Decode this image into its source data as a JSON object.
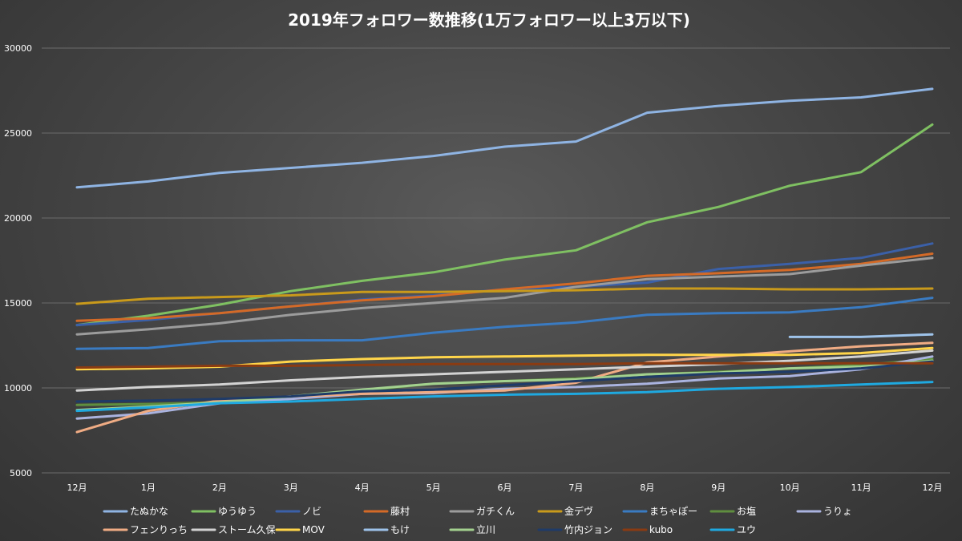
{
  "chart_data": {
    "type": "line",
    "title": "2019年フォロワー数推移(1万フォロワー以上3万以下)",
    "xlabel": "",
    "ylabel": "",
    "categories": [
      "12月",
      "1月",
      "2月",
      "3月",
      "4月",
      "5月",
      "6月",
      "7月",
      "8月",
      "9月",
      "10月",
      "11月",
      "12月"
    ],
    "ylim": [
      5000,
      30000
    ],
    "yticks": [
      5000,
      10000,
      15000,
      20000,
      25000,
      30000
    ],
    "grid": true,
    "legend_position": "bottom",
    "background": "#474747",
    "series": [
      {
        "name": "たぬかな",
        "color": "#8fb4e3",
        "values": [
          21800,
          22150,
          22650,
          22950,
          23250,
          23650,
          24200,
          24500,
          26200,
          26600,
          26900,
          27100,
          27600
        ]
      },
      {
        "name": "ゆうゆう",
        "color": "#7fc062",
        "values": [
          13700,
          14250,
          14900,
          15700,
          16300,
          16800,
          17550,
          18100,
          19750,
          20650,
          21900,
          22700,
          25500
        ]
      },
      {
        "name": "ノビ",
        "color": "#3b60a8",
        "values": [
          13700,
          14000,
          14400,
          14800,
          15200,
          15450,
          15800,
          15950,
          16200,
          17000,
          17300,
          17650,
          18500
        ]
      },
      {
        "name": "藤村",
        "color": "#d46a27",
        "values": [
          13950,
          14100,
          14400,
          14800,
          15150,
          15400,
          15800,
          16150,
          16600,
          16750,
          16950,
          17300,
          17900
        ]
      },
      {
        "name": "ガチくん",
        "color": "#9c9c9c",
        "values": [
          13150,
          13450,
          13800,
          14300,
          14700,
          15000,
          15300,
          15950,
          16400,
          16550,
          16700,
          17200,
          17650
        ]
      },
      {
        "name": "金デヴ",
        "color": "#c99a1b",
        "values": [
          14950,
          15250,
          15350,
          15450,
          15650,
          15650,
          15700,
          15750,
          15850,
          15850,
          15800,
          15800,
          15850
        ]
      },
      {
        "name": "まちゃぽー",
        "color": "#3a7bc2",
        "values": [
          12300,
          12350,
          12750,
          12800,
          12800,
          13250,
          13600,
          13850,
          14300,
          14400,
          14450,
          14750,
          15300
        ]
      },
      {
        "name": "お塩",
        "color": "#5f8e3f",
        "values": [
          9000,
          9050,
          9150,
          9450,
          9850,
          10250,
          10400,
          10550,
          10800,
          10950,
          11150,
          11350,
          11700
        ]
      },
      {
        "name": "うりょ",
        "color": "#aab3df",
        "values": [
          8200,
          8500,
          9100,
          9350,
          9650,
          9700,
          9950,
          10050,
          10250,
          10550,
          10700,
          11100,
          11850
        ]
      },
      {
        "name": "フェンりっち",
        "color": "#f0ac84",
        "values": [
          7400,
          8650,
          9250,
          9500,
          9650,
          9750,
          9850,
          10300,
          11500,
          11850,
          12150,
          12450,
          12650
        ]
      },
      {
        "name": "ストーム久保",
        "color": "#d2d2d2",
        "values": [
          9850,
          10050,
          10200,
          10450,
          10650,
          10800,
          10950,
          11100,
          11250,
          11400,
          11600,
          11850,
          12200
        ]
      },
      {
        "name": "MOV",
        "color": "#ffd54a",
        "values": [
          11100,
          11150,
          11250,
          11550,
          11700,
          11800,
          11850,
          11900,
          11950,
          11950,
          11950,
          12050,
          12350
        ]
      },
      {
        "name": "もけ",
        "color": "#9ec3ea",
        "values": [
          null,
          null,
          null,
          null,
          null,
          null,
          null,
          null,
          null,
          null,
          13000,
          13000,
          13150
        ]
      },
      {
        "name": "立川",
        "color": "#a3d18f",
        "values": [
          8700,
          8900,
          9150,
          9500,
          9900,
          10250,
          10400,
          10500,
          10800,
          10900,
          11150,
          11250,
          11600
        ]
      },
      {
        "name": "竹内ジョン",
        "color": "#1f3b68",
        "values": [
          9200,
          9250,
          9350,
          9500,
          9800,
          9900,
          10150,
          10400,
          10650,
          10850,
          10950,
          11150,
          11550
        ]
      },
      {
        "name": "kubo",
        "color": "#8a3b12",
        "values": [
          11200,
          11250,
          11300,
          11300,
          11350,
          11400,
          11400,
          11400,
          11450,
          11450,
          11450,
          11450,
          11450
        ]
      },
      {
        "name": "ユウ",
        "color": "#1fa9e0",
        "values": [
          8650,
          8850,
          9100,
          9200,
          9350,
          9500,
          9600,
          9650,
          9750,
          9950,
          10050,
          10200,
          10350
        ]
      }
    ]
  }
}
